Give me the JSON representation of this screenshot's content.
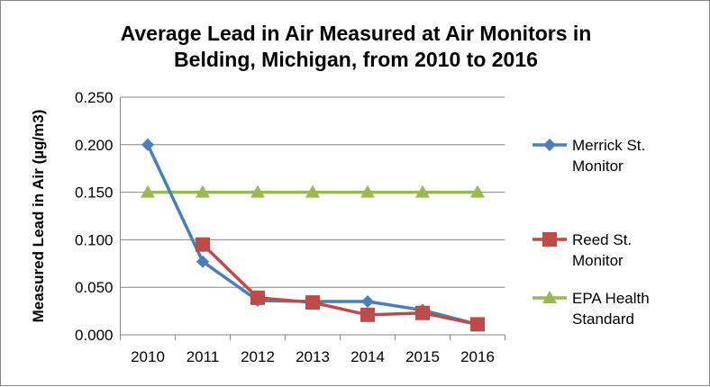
{
  "chart_data": {
    "type": "line",
    "title_lines": [
      "Average Lead  in Air Measured at Air Monitors in",
      "Belding, Michigan, from 2010  to 2016"
    ],
    "xlabel": "",
    "ylabel": "Measured  Lead in Air (µg/m3)",
    "categories": [
      "2010",
      "2011",
      "2012",
      "2013",
      "2014",
      "2015",
      "2016"
    ],
    "ylim": [
      0,
      0.25
    ],
    "yticks": [
      "0.000",
      "0.050",
      "0.100",
      "0.150",
      "0.200",
      "0.250"
    ],
    "grid": true,
    "legend_position": "right",
    "series": [
      {
        "name_lines": [
          "Merrick St.",
          "Monitor"
        ],
        "color": "#4A7EBB",
        "marker": "diamond",
        "values": [
          0.2,
          0.077,
          0.036,
          0.035,
          0.035,
          0.026,
          0.011
        ]
      },
      {
        "name_lines": [
          "Reed St.",
          "Monitor"
        ],
        "color": "#BE4B48",
        "marker": "square",
        "values": [
          null,
          0.095,
          0.039,
          0.034,
          0.021,
          0.023,
          0.011
        ]
      },
      {
        "name_lines": [
          "EPA Health",
          "Standard"
        ],
        "color": "#98B954",
        "marker": "triangle",
        "values": [
          0.15,
          0.15,
          0.15,
          0.15,
          0.15,
          0.15,
          0.15
        ]
      }
    ]
  }
}
